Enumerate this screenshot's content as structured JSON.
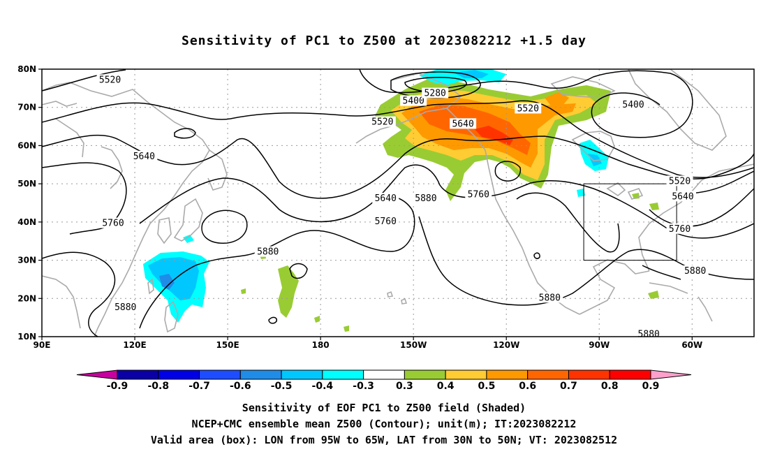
{
  "title": "Sensitivity of PC1 to Z500 at 2023082212 +1.5 day",
  "lat_labels": [
    "80N",
    "70N",
    "60N",
    "50N",
    "40N",
    "30N",
    "20N",
    "10N"
  ],
  "lon_labels": [
    "90E",
    "120E",
    "150E",
    "180",
    "150W",
    "120W",
    "90W",
    "60W"
  ],
  "contour_labels": [
    {
      "text": "5520",
      "lon": 112,
      "lat": 77
    },
    {
      "text": "5400",
      "lon": -150,
      "lat": 71.5
    },
    {
      "text": "5280",
      "lon": -143,
      "lat": 73.5
    },
    {
      "text": "5520",
      "lon": -113,
      "lat": 69.5
    },
    {
      "text": "5400",
      "lon": -79,
      "lat": 70.5
    },
    {
      "text": "5520",
      "lon": -160,
      "lat": 66
    },
    {
      "text": "5640",
      "lon": -134,
      "lat": 65.5
    },
    {
      "text": "5640",
      "lon": 123,
      "lat": 57
    },
    {
      "text": "5520",
      "lon": -64,
      "lat": 50.5
    },
    {
      "text": "5640",
      "lon": -159,
      "lat": 46
    },
    {
      "text": "5760",
      "lon": -129,
      "lat": 47
    },
    {
      "text": "5880",
      "lon": -146,
      "lat": 46
    },
    {
      "text": "5640",
      "lon": -63,
      "lat": 46.5
    },
    {
      "text": "5760",
      "lon": 113,
      "lat": 39.5
    },
    {
      "text": "5760",
      "lon": -159,
      "lat": 40
    },
    {
      "text": "5760",
      "lon": -64,
      "lat": 38
    },
    {
      "text": "5880",
      "lon": 163,
      "lat": 32
    },
    {
      "text": "5880",
      "lon": -59,
      "lat": 27
    },
    {
      "text": "5880",
      "lon": -106,
      "lat": 20
    },
    {
      "text": "5880",
      "lon": 117,
      "lat": 17.5
    },
    {
      "text": "5880",
      "lon": -74,
      "lat": 10.5
    }
  ],
  "box": {
    "lon_from": -95,
    "lon_to": -65,
    "lat_from": 30,
    "lat_to": 50
  },
  "colorbar": {
    "labels": [
      "-0.9",
      "-0.8",
      "-0.7",
      "-0.6",
      "-0.5",
      "-0.4",
      "-0.3",
      "0.3",
      "0.4",
      "0.5",
      "0.6",
      "0.7",
      "0.8",
      "0.9"
    ],
    "colors": [
      "#0a00a6",
      "#0000e6",
      "#1e4cff",
      "#1f8ce8",
      "#00c8ff",
      "#00ffff",
      "#ffffff",
      "#99cc33",
      "#ffcc33",
      "#ff9900",
      "#ff6600",
      "#ff3300",
      "#ff0000"
    ],
    "low_end_color": "#c8009f",
    "high_end_color": "#ffa0cc"
  },
  "captions": {
    "line1": "Sensitivity of EOF PC1 to Z500 field (Shaded)",
    "line2": "NCEP+CMC ensemble mean Z500 (Contour); unit(m); IT:2023082212",
    "line3": "Valid area (box): LON from 95W to 65W, LAT from 30N to 50N; VT: 2023082512"
  }
}
